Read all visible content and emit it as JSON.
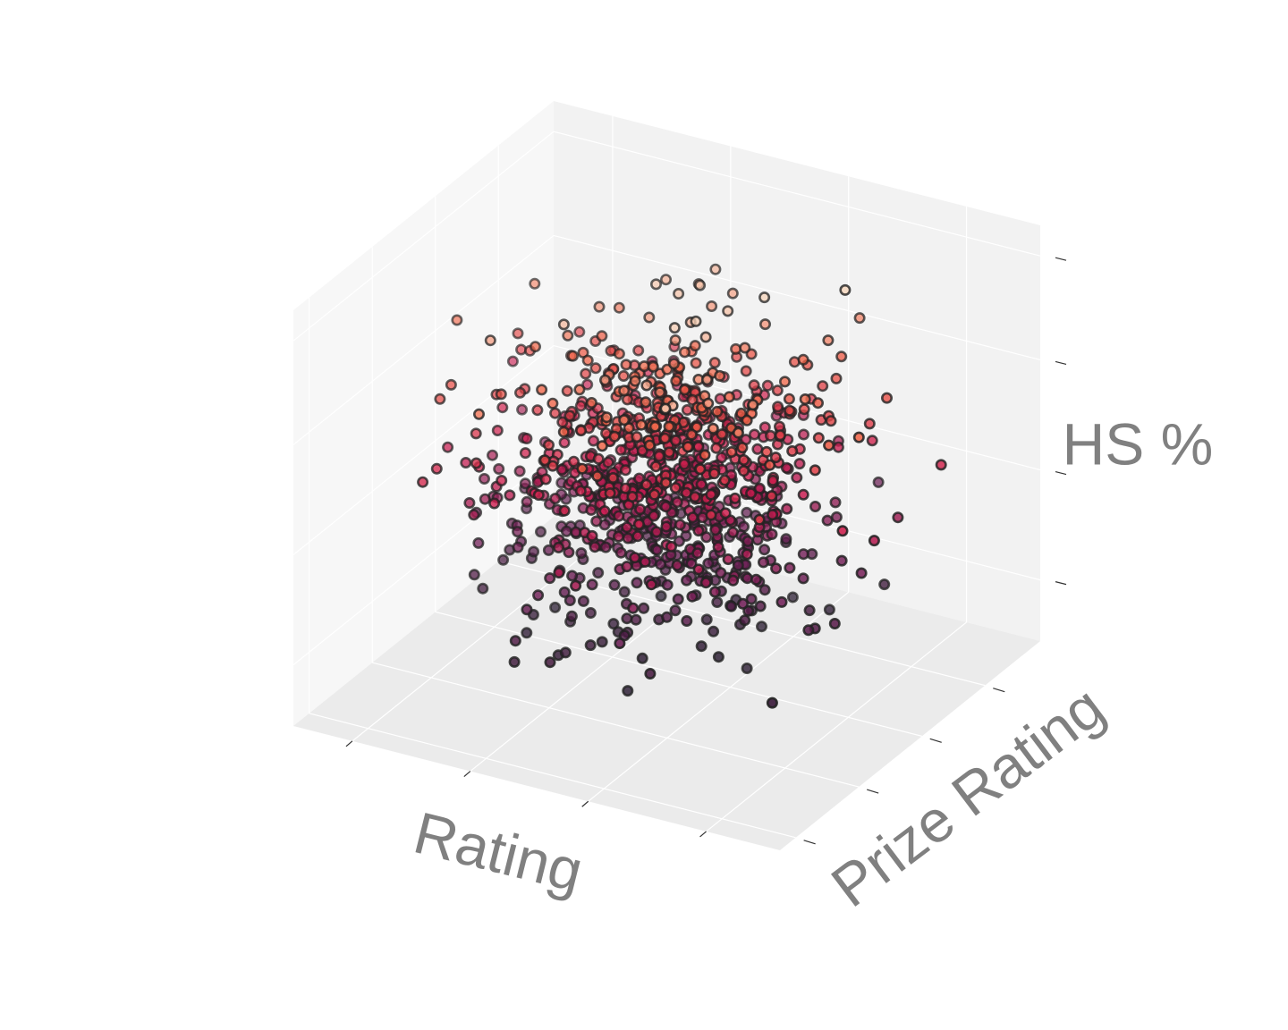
{
  "chart_data": {
    "type": "scatter",
    "projection": "3d",
    "title": "",
    "xlabel": "Rating",
    "ylabel": "Prize Rating",
    "zlabel": "HS %",
    "xlim": [
      -3.3,
      3.3
    ],
    "ylim": [
      -3.3,
      3.3
    ],
    "zlim": [
      -3.4,
      3.4
    ],
    "ticks_labeled": false,
    "grid": true,
    "colormap": "rocket",
    "color_by": "z",
    "marker": "circle",
    "marker_edge_color": "#222222",
    "pane_colors": [
      "#f2f2f2",
      "#ebebeb",
      "#f7f7f7"
    ],
    "num_points": 1000,
    "distribution": "approximately standard normal in x, y and z",
    "points_sample": [
      {
        "x": 0.1,
        "y": 0.2,
        "z": 0.0
      },
      {
        "x": -2.9,
        "y": 0.1,
        "z": 1.6
      },
      {
        "x": 2.6,
        "y": 1.0,
        "z": -0.4
      },
      {
        "x": -0.3,
        "y": -2.4,
        "z": -1.9
      },
      {
        "x": 0.4,
        "y": 0.8,
        "z": 2.4
      }
    ]
  }
}
